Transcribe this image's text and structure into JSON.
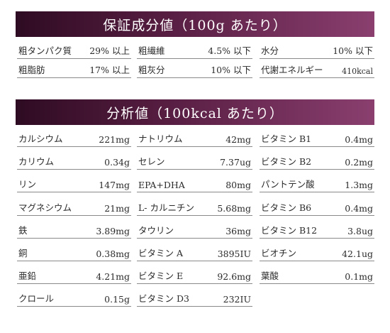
{
  "guarantee": {
    "title": "保証成分値（100g あたり）",
    "rows": [
      [
        {
          "label": "粗タンパク質",
          "value": "29% 以上"
        },
        {
          "label": "粗繊維",
          "value": "4.5% 以下"
        },
        {
          "label": "水分",
          "value": "10% 以下"
        }
      ],
      [
        {
          "label": "粗脂肪",
          "value": "17% 以上"
        },
        {
          "label": "粗灰分",
          "value": "10% 以下"
        },
        {
          "label": "代謝エネルギー",
          "value": "410kcal"
        }
      ]
    ]
  },
  "analysis": {
    "title": "分析値（100kcal あたり）",
    "rows": [
      [
        {
          "label": "カルシウム",
          "value": "221mg"
        },
        {
          "label": "ナトリウム",
          "value": "42mg"
        },
        {
          "label": "ビタミン B1",
          "value": "0.4mg"
        }
      ],
      [
        {
          "label": "カリウム",
          "value": "0.34g"
        },
        {
          "label": "セレン",
          "value": "7.37ug"
        },
        {
          "label": "ビタミン B2",
          "value": "0.2mg"
        }
      ],
      [
        {
          "label": "リン",
          "value": "147mg"
        },
        {
          "label": "EPA+DHA",
          "value": "80mg"
        },
        {
          "label": "パントテン酸",
          "value": "1.3mg"
        }
      ],
      [
        {
          "label": "マグネシウム",
          "value": "21mg"
        },
        {
          "label": "L- カルニチン",
          "value": "5.68mg"
        },
        {
          "label": "ビタミン B6",
          "value": "0.4mg"
        }
      ],
      [
        {
          "label": "鉄",
          "value": "3.89mg"
        },
        {
          "label": "タウリン",
          "value": "36mg"
        },
        {
          "label": "ビタミン B12",
          "value": "3.8ug"
        }
      ],
      [
        {
          "label": "銅",
          "value": "0.38mg"
        },
        {
          "label": "ビタミン A",
          "value": "3895IU"
        },
        {
          "label": "ビオチン",
          "value": "42.1ug"
        }
      ],
      [
        {
          "label": "亜鉛",
          "value": "4.21mg"
        },
        {
          "label": "ビタミン E",
          "value": "92.6mg"
        },
        {
          "label": "葉酸",
          "value": "0.1mg"
        }
      ],
      [
        {
          "label": "クロール",
          "value": "0.15g"
        },
        {
          "label": "ビタミン D3",
          "value": "232IU"
        },
        null
      ]
    ]
  }
}
